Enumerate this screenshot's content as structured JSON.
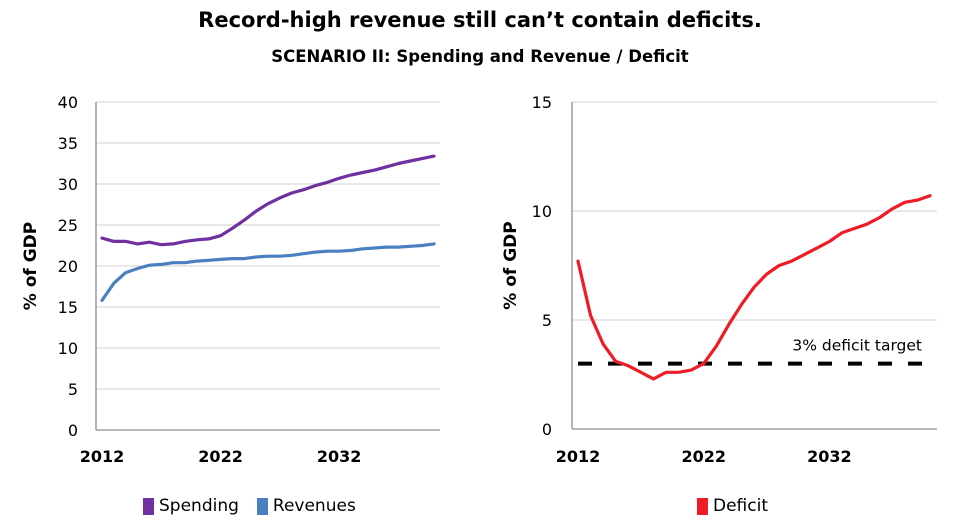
{
  "title": "Record-high revenue still can’t contain deficits.",
  "subtitle": "SCENARIO II: Spending and Revenue / Deficit",
  "chart_data": [
    {
      "type": "line",
      "ylabel": "% of GDP",
      "xlabel": "",
      "ylim": [
        0,
        40
      ],
      "yticks": [
        0,
        5,
        10,
        15,
        20,
        25,
        30,
        35,
        40
      ],
      "xticks": [
        2012,
        2022,
        2032
      ],
      "grid": true,
      "legend": "bottom",
      "x": [
        2012,
        2013,
        2014,
        2015,
        2016,
        2017,
        2018,
        2019,
        2020,
        2021,
        2022,
        2023,
        2024,
        2025,
        2026,
        2027,
        2028,
        2029,
        2030,
        2031,
        2032,
        2033,
        2034,
        2035,
        2036,
        2037,
        2038,
        2039,
        2040
      ],
      "series": [
        {
          "name": "Spending",
          "color": "#7030a0",
          "values": [
            23.4,
            23.0,
            23.0,
            22.7,
            22.9,
            22.6,
            22.7,
            23.0,
            23.2,
            23.3,
            23.7,
            24.6,
            25.6,
            26.7,
            27.6,
            28.3,
            28.9,
            29.3,
            29.8,
            30.2,
            30.7,
            31.1,
            31.4,
            31.7,
            32.1,
            32.5,
            32.8,
            33.1,
            33.4
          ]
        },
        {
          "name": "Revenues",
          "color": "#4a7fc1",
          "values": [
            15.8,
            17.9,
            19.2,
            19.7,
            20.1,
            20.2,
            20.4,
            20.4,
            20.6,
            20.7,
            20.8,
            20.9,
            20.9,
            21.1,
            21.2,
            21.2,
            21.3,
            21.5,
            21.7,
            21.8,
            21.8,
            21.9,
            22.1,
            22.2,
            22.3,
            22.3,
            22.4,
            22.5,
            22.7
          ]
        }
      ]
    },
    {
      "type": "line",
      "ylabel": "% of GDP",
      "xlabel": "",
      "ylim": [
        0,
        15
      ],
      "yticks": [
        0,
        5,
        10,
        15
      ],
      "xticks": [
        2012,
        2022,
        2032
      ],
      "grid": true,
      "legend": "bottom",
      "x": [
        2012,
        2013,
        2014,
        2015,
        2016,
        2017,
        2018,
        2019,
        2020,
        2021,
        2022,
        2023,
        2024,
        2025,
        2026,
        2027,
        2028,
        2029,
        2030,
        2031,
        2032,
        2033,
        2034,
        2035,
        2036,
        2037,
        2038,
        2039,
        2040
      ],
      "series": [
        {
          "name": "Deficit",
          "color": "#ee1c25",
          "values": [
            7.7,
            5.2,
            3.9,
            3.1,
            2.9,
            2.6,
            2.3,
            2.6,
            2.6,
            2.7,
            3.0,
            3.8,
            4.8,
            5.7,
            6.5,
            7.1,
            7.5,
            7.7,
            8.0,
            8.3,
            8.6,
            9.0,
            9.2,
            9.4,
            9.7,
            10.1,
            10.4,
            10.5,
            10.7
          ]
        }
      ],
      "reference_line": {
        "value": 3,
        "label": "3% deficit target",
        "color": "#000000",
        "style": "dashed"
      }
    }
  ]
}
